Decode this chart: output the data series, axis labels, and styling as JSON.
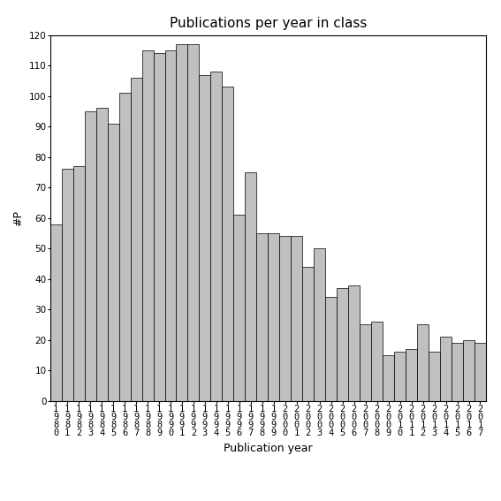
{
  "title": "Publications per year in class",
  "xlabel": "Publication year",
  "ylabel": "#P",
  "years": [
    1980,
    1981,
    1982,
    1983,
    1984,
    1985,
    1986,
    1987,
    1988,
    1989,
    1990,
    1991,
    1992,
    1993,
    1994,
    1995,
    1996,
    1997,
    1998,
    1999,
    2000,
    2001,
    2002,
    2003,
    2004,
    2005,
    2006,
    2007,
    2008,
    2009,
    2010,
    2011,
    2012,
    2013,
    2014,
    2015,
    2016,
    2017
  ],
  "values": [
    58,
    76,
    77,
    95,
    96,
    91,
    101,
    106,
    115,
    114,
    115,
    117,
    117,
    107,
    108,
    103,
    61,
    75,
    55,
    55,
    54,
    54,
    44,
    50,
    34,
    37,
    38,
    25,
    26,
    15,
    16,
    17,
    25,
    16,
    21,
    19,
    20,
    19
  ],
  "bar_color": "#c0c0c0",
  "bar_edgecolor": "#000000",
  "ylim": [
    0,
    120
  ],
  "yticks": [
    0,
    10,
    20,
    30,
    40,
    50,
    60,
    70,
    80,
    90,
    100,
    110,
    120
  ],
  "background_color": "#ffffff",
  "title_fontsize": 11,
  "axis_label_fontsize": 9,
  "ylabel_fontsize": 9,
  "tick_fontsize": 7.5
}
